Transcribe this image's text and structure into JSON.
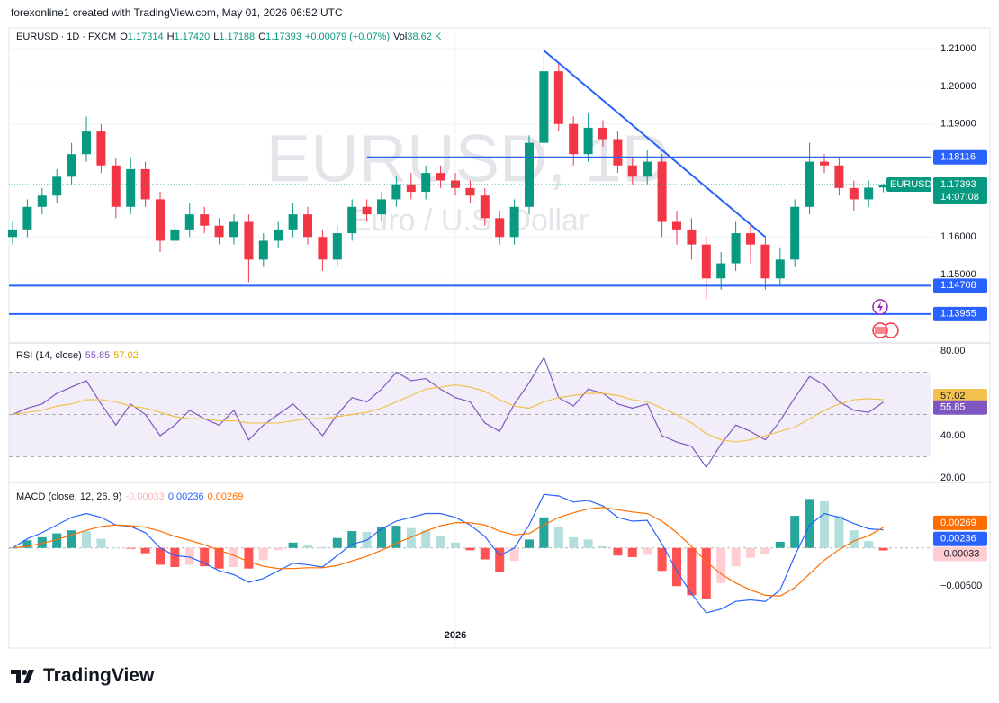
{
  "header": {
    "credit": "forexonline1 created with TradingView.com, May 01, 2026 06:52 UTC"
  },
  "chart_data": [
    {
      "type": "candlestick",
      "title": "EURUSD · 1D · FXCM",
      "symbol": "EURUSD",
      "watermark": [
        "EURUSD, 1D",
        "Euro / U.S. Dollar"
      ],
      "legend_letters": [
        "O",
        "H",
        "L",
        "C"
      ],
      "value_labels": {
        "59": [
          "1.17314",
          "1.17420",
          "1.17188",
          "1.17393"
        ]
      },
      "change": "+0.00079 (+0.07%)",
      "volume_label": "Vol",
      "volume": "38.62 K",
      "countdown": "14:07:08",
      "categories": [
        null,
        null,
        null,
        null,
        null,
        null,
        null,
        null,
        null,
        null,
        null,
        null,
        null,
        null,
        null,
        null,
        null,
        null,
        null,
        null,
        null,
        null,
        null,
        null,
        null,
        null,
        null,
        null,
        null,
        null,
        "2026",
        null,
        null,
        null,
        null,
        null,
        null,
        null,
        null,
        null,
        null,
        null,
        null,
        null,
        null,
        null,
        null,
        null,
        null,
        null,
        null,
        null,
        null,
        null,
        null,
        null,
        null,
        null,
        null,
        null
      ],
      "open": [
        1.16,
        1.162,
        1.168,
        1.171,
        1.176,
        1.182,
        1.188,
        1.179,
        1.168,
        1.178,
        1.17,
        1.159,
        1.162,
        1.166,
        1.163,
        1.16,
        1.164,
        1.154,
        1.159,
        1.162,
        1.166,
        1.16,
        1.154,
        1.161,
        1.168,
        1.166,
        1.17,
        1.174,
        1.172,
        1.177,
        1.175,
        1.173,
        1.171,
        1.165,
        1.16,
        1.168,
        1.185,
        1.204,
        1.19,
        1.182,
        1.189,
        1.186,
        1.179,
        1.176,
        1.18,
        1.164,
        1.162,
        1.158,
        1.149,
        1.153,
        1.161,
        1.158,
        1.149,
        1.154,
        1.168,
        1.18,
        1.179,
        1.173,
        1.17,
        1.17314
      ],
      "high": [
        1.164,
        1.17,
        1.173,
        1.178,
        1.185,
        1.192,
        1.19,
        1.181,
        1.181,
        1.18,
        1.172,
        1.164,
        1.169,
        1.168,
        1.165,
        1.166,
        1.166,
        1.161,
        1.164,
        1.169,
        1.168,
        1.162,
        1.163,
        1.17,
        1.17,
        1.172,
        1.176,
        1.177,
        1.179,
        1.179,
        1.177,
        1.175,
        1.173,
        1.167,
        1.17,
        1.187,
        1.2095,
        1.206,
        1.192,
        1.193,
        1.191,
        1.188,
        1.181,
        1.183,
        1.182,
        1.167,
        1.165,
        1.16,
        1.156,
        1.164,
        1.163,
        1.16,
        1.157,
        1.17,
        1.185,
        1.182,
        1.181,
        1.175,
        1.175,
        1.1742
      ],
      "low": [
        1.158,
        1.16,
        1.166,
        1.169,
        1.174,
        1.18,
        1.177,
        1.165,
        1.166,
        1.168,
        1.156,
        1.157,
        1.16,
        1.161,
        1.158,
        1.158,
        1.148,
        1.152,
        1.157,
        1.16,
        1.158,
        1.151,
        1.152,
        1.159,
        1.164,
        1.164,
        1.168,
        1.17,
        1.17,
        1.173,
        1.171,
        1.169,
        1.163,
        1.158,
        1.158,
        1.166,
        1.183,
        1.188,
        1.179,
        1.18,
        1.184,
        1.177,
        1.174,
        1.174,
        1.16,
        1.158,
        1.154,
        1.1435,
        1.146,
        1.151,
        1.153,
        1.146,
        1.147,
        1.152,
        1.166,
        1.177,
        1.171,
        1.167,
        1.168,
        1.17188
      ],
      "close": [
        1.162,
        1.168,
        1.171,
        1.176,
        1.182,
        1.188,
        1.179,
        1.168,
        1.178,
        1.17,
        1.159,
        1.162,
        1.166,
        1.163,
        1.16,
        1.164,
        1.154,
        1.159,
        1.162,
        1.166,
        1.16,
        1.154,
        1.161,
        1.168,
        1.166,
        1.17,
        1.174,
        1.172,
        1.177,
        1.175,
        1.173,
        1.171,
        1.165,
        1.16,
        1.168,
        1.185,
        1.204,
        1.19,
        1.182,
        1.189,
        1.186,
        1.179,
        1.176,
        1.18,
        1.164,
        1.162,
        1.158,
        1.149,
        1.153,
        1.161,
        1.158,
        1.149,
        1.154,
        1.168,
        1.18,
        1.179,
        1.173,
        1.17,
        1.1731,
        1.17393
      ],
      "up_color": "#089981",
      "down_color": "#f23645",
      "ylim": [
        1.1321,
        1.2124
      ],
      "yticks": [
        {
          "value": 1.15,
          "label": "1.15000"
        },
        {
          "value": 1.16,
          "label": "1.16000"
        },
        {
          "value": 1.19,
          "label": "1.19000"
        },
        {
          "value": 1.2,
          "label": "1.20000"
        },
        {
          "value": 1.21,
          "label": "1.21000"
        }
      ],
      "grid": true,
      "levels": [
        {
          "price": 1.18116,
          "from": 24
        },
        {
          "price": 1.14708
        },
        {
          "price": 1.13955
        }
      ],
      "trendline": {
        "x": [
          36,
          51
        ],
        "y": [
          1.2095,
          1.16
        ]
      },
      "line_color": "#2962ff"
    },
    {
      "type": "rsi",
      "title": "RSI (14, close)",
      "series": [
        {
          "color": "#7e57c2",
          "values": [
            50,
            53,
            55,
            60,
            63,
            66,
            55,
            45,
            55,
            50,
            40,
            45,
            52,
            48,
            45,
            52,
            38,
            45,
            50,
            55,
            48,
            40,
            50,
            58,
            56,
            62,
            70,
            66,
            67,
            62,
            58,
            56,
            46,
            42,
            55,
            65,
            77,
            58,
            54,
            62,
            60,
            55,
            53,
            55,
            40,
            37,
            35,
            25,
            36,
            45,
            42,
            38,
            47,
            58,
            68,
            64,
            56,
            52,
            51,
            55.85
          ]
        },
        {
          "color": "#f2c14e",
          "values": [
            50,
            51,
            52,
            54,
            55,
            57,
            57,
            56,
            54,
            53,
            51,
            49,
            48,
            48,
            47,
            47,
            46,
            46,
            46,
            47,
            48,
            48,
            49,
            50,
            51,
            53,
            56,
            59,
            62,
            63,
            64,
            63,
            61,
            57,
            54,
            53,
            56,
            58,
            59,
            60,
            60,
            59,
            57,
            56,
            53,
            50,
            46,
            41,
            38,
            37,
            38,
            40,
            42,
            44,
            48,
            52,
            55,
            57,
            57.5,
            57.02
          ]
        }
      ],
      "ylim": [
        18.3,
        83
      ],
      "yticks": [
        {
          "value": 80,
          "label": "80.00"
        },
        {
          "value": 40,
          "label": "40.00"
        },
        {
          "value": 20,
          "label": "20.00"
        }
      ],
      "band": [
        30,
        70
      ],
      "midline": 50,
      "band_color": "#7e57c2"
    },
    {
      "type": "macd",
      "title": "MACD (close, 12, 26, 9)",
      "histogram": [
        0,
        0.001,
        0.0014,
        0.0019,
        0.0023,
        0.0022,
        0.0012,
        0,
        -0.0001,
        -0.0007,
        -0.0022,
        -0.0025,
        -0.0022,
        -0.0024,
        -0.0027,
        -0.0025,
        -0.0027,
        -0.0016,
        -0.0003,
        0.0007,
        0.0004,
        0.0001,
        0.0013,
        0.0022,
        0.0021,
        0.0028,
        0.0029,
        0.0026,
        0.0023,
        0.0016,
        0.0007,
        -0.0003,
        -0.0015,
        -0.0032,
        -0.0017,
        0.0011,
        0.004,
        0.0028,
        0.0014,
        0.0011,
        0.0002,
        -0.001,
        -0.0012,
        -0.0009,
        -0.003,
        -0.005,
        -0.0062,
        -0.0067,
        -0.0046,
        -0.0024,
        -0.0013,
        -0.0008,
        0.0008,
        0.0042,
        0.0064,
        0.0061,
        0.0042,
        0.0023,
        0.0009,
        -0.00033
      ],
      "hist_colors": [
        "#26a69a",
        "#b2dfdb",
        "#ff5252",
        "#ffcdd2"
      ],
      "series": [
        {
          "color": "#2962ff",
          "values": [
            0,
            0.0012,
            0.002,
            0.003,
            0.004,
            0.0045,
            0.004,
            0.003,
            0.0028,
            0.002,
            0,
            -0.001,
            -0.0012,
            -0.002,
            -0.003,
            -0.0035,
            -0.0045,
            -0.004,
            -0.003,
            -0.002,
            -0.0022,
            -0.0025,
            -0.001,
            0.0005,
            0.001,
            0.0025,
            0.0035,
            0.004,
            0.0045,
            0.0045,
            0.004,
            0.003,
            0.0015,
            -0.001,
            0,
            0.003,
            0.007,
            0.0068,
            0.006,
            0.0062,
            0.0055,
            0.004,
            0.0035,
            0.0036,
            0.0005,
            -0.003,
            -0.006,
            -0.0085,
            -0.008,
            -0.007,
            -0.0068,
            -0.007,
            -0.0055,
            -0.001,
            0.003,
            0.0045,
            0.004,
            0.0032,
            0.0025,
            0.00236
          ]
        },
        {
          "color": "#ff6d00",
          "values": [
            0,
            0.0002,
            0.0006,
            0.0011,
            0.0017,
            0.0023,
            0.0028,
            0.003,
            0.0029,
            0.0027,
            0.0022,
            0.0015,
            0.001,
            0.0004,
            -0.0003,
            -0.001,
            -0.0018,
            -0.0024,
            -0.0027,
            -0.0027,
            -0.0026,
            -0.0026,
            -0.0023,
            -0.0017,
            -0.0011,
            -0.0003,
            0.0006,
            0.0014,
            0.0022,
            0.0029,
            0.0033,
            0.0033,
            0.003,
            0.0022,
            0.0017,
            0.0019,
            0.003,
            0.004,
            0.0046,
            0.0051,
            0.0053,
            0.005,
            0.0047,
            0.0045,
            0.0035,
            0.002,
            0.0002,
            -0.0018,
            -0.0034,
            -0.0046,
            -0.0055,
            -0.0062,
            -0.0063,
            -0.0052,
            -0.0034,
            -0.0016,
            -0.0002,
            0.0009,
            0.0016,
            0.00269
          ]
        }
      ],
      "ylim": [
        -0.0131,
        0.00833
      ],
      "yticks": [
        {
          "value": -0.005,
          "label": "−0.00500"
        }
      ]
    }
  ],
  "footer": {
    "brand": "TradingView"
  }
}
